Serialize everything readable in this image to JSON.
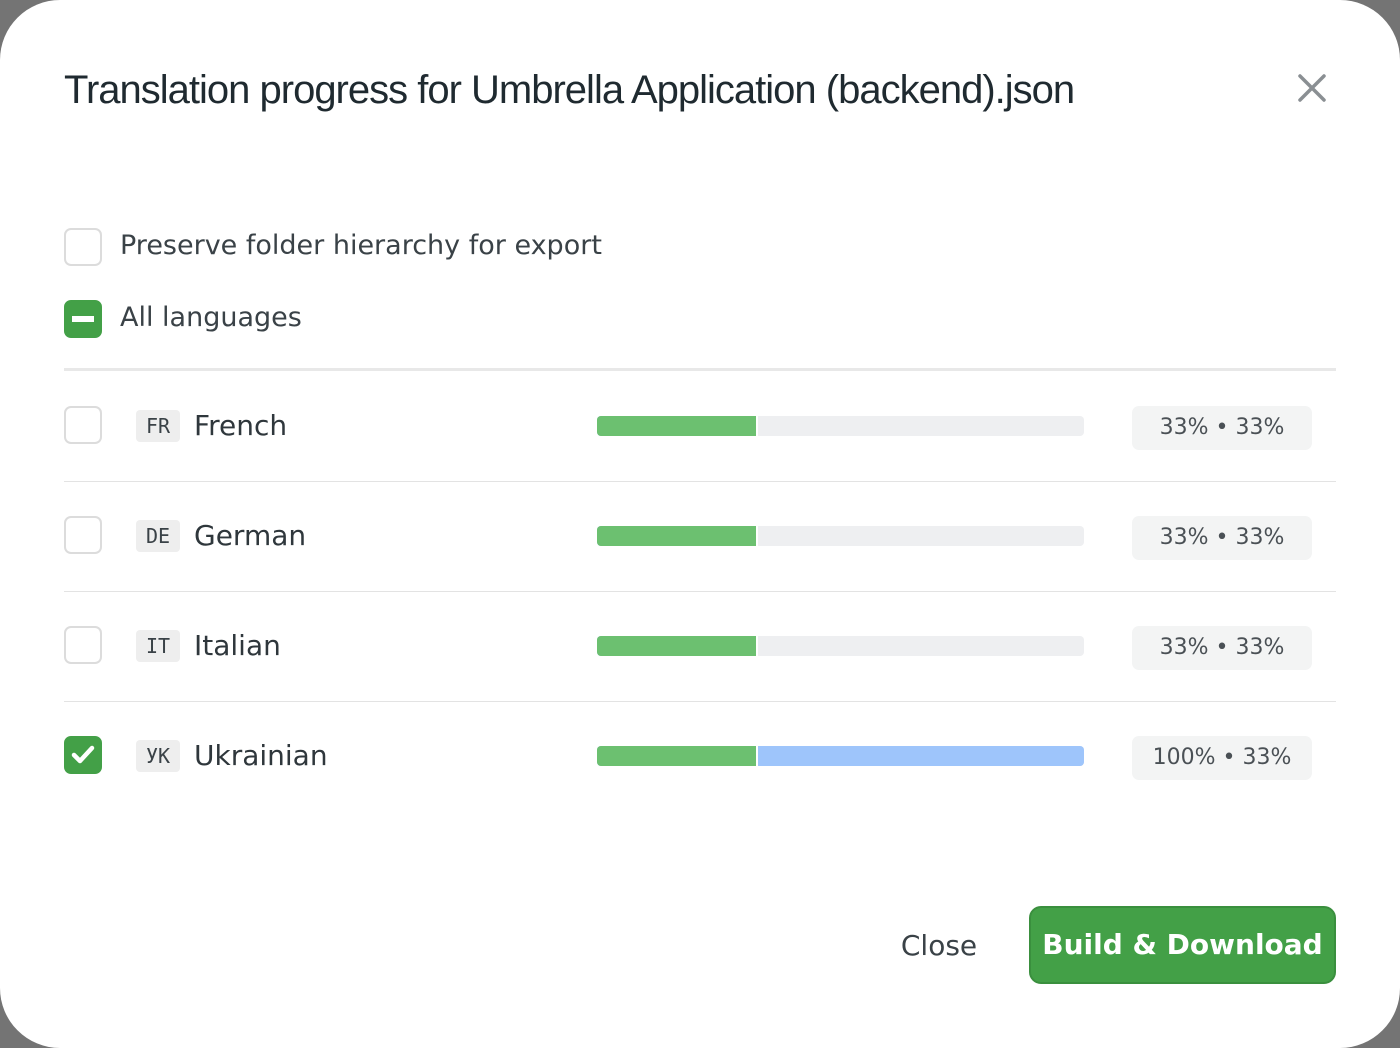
{
  "dialog": {
    "title": "Translation progress for Umbrella Application (backend).json",
    "close_icon": "close-x-icon"
  },
  "options": {
    "preserve_folder": {
      "label": "Preserve folder hierarchy for export",
      "checked": false
    },
    "all_languages": {
      "label": "All languages",
      "state": "indeterminate"
    }
  },
  "languages": [
    {
      "code": "FR",
      "name": "French",
      "checked": false,
      "translated": 33,
      "reviewed": 33,
      "badge": "33% • 33%"
    },
    {
      "code": "DE",
      "name": "German",
      "checked": false,
      "translated": 33,
      "reviewed": 33,
      "badge": "33% • 33%"
    },
    {
      "code": "IT",
      "name": "Italian",
      "checked": false,
      "translated": 33,
      "reviewed": 33,
      "badge": "33% • 33%"
    },
    {
      "code": "УК",
      "name": "Ukrainian",
      "checked": true,
      "translated": 100,
      "reviewed": 33,
      "badge": "100% • 33%"
    }
  ],
  "colors": {
    "accent": "#43a047",
    "reviewed": "#6cc070",
    "translated": "#9ec5fb"
  },
  "footer": {
    "close_label": "Close",
    "build_label": "Build & Download"
  }
}
